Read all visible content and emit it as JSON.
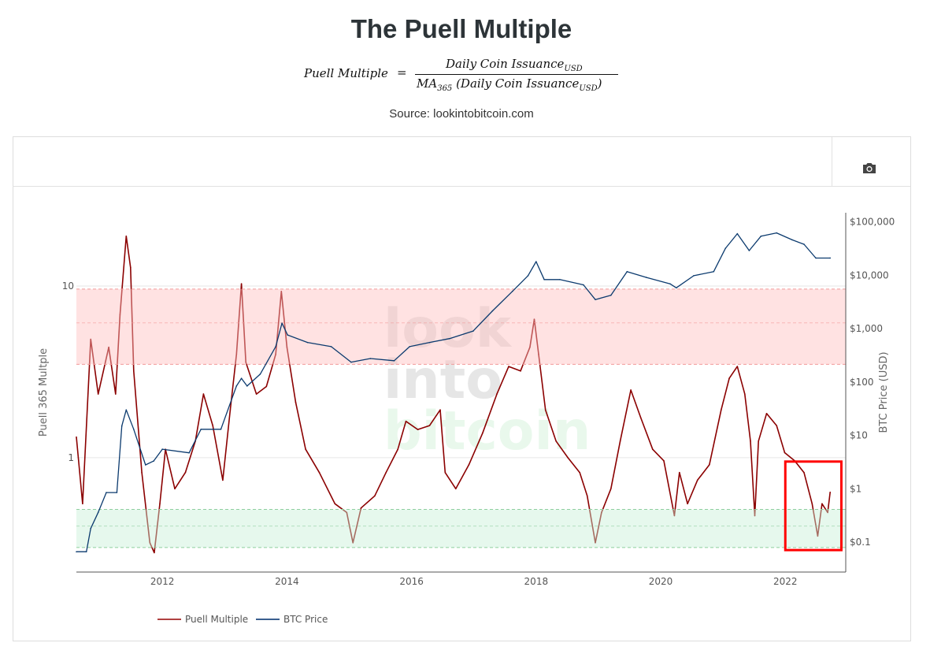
{
  "title": "The Puell Multiple",
  "formula": {
    "lhs": "Puell Multiple",
    "eq": "=",
    "numerator": "Daily Coin Issuance",
    "numerator_sub": "USD",
    "den_ma": "MA",
    "den_ma_sub": "365",
    "den_body": " (Daily Coin Issuance",
    "den_sub": "USD",
    "den_close": ")"
  },
  "source": "Source: lookintobitcoin.com",
  "toolbar": {
    "camera_icon": "camera-icon"
  },
  "watermark": [
    "look",
    "into",
    "bitcoin"
  ],
  "colors": {
    "puell": "#8b0000",
    "btc": "#0b3a6e",
    "red_band": "#ffdede",
    "green_band": "#e6f7ee",
    "highlight": "#ff0000"
  },
  "chart_data": {
    "type": "line",
    "title": "",
    "xlabel": "",
    "x_ticks": [
      "2012",
      "2014",
      "2016",
      "2018",
      "2020",
      "2022"
    ],
    "x_tick_values": [
      2012,
      2014,
      2016,
      2018,
      2020,
      2022
    ],
    "xlim": [
      2010.62,
      2022.97
    ],
    "y_left": {
      "label": "Puell 365 Multple",
      "scale": "log",
      "ticks": [
        "1",
        "10"
      ],
      "tick_values": [
        1,
        10
      ],
      "range": [
        0.216,
        26.7
      ]
    },
    "y_right": {
      "label": "BTC Price (USD)",
      "scale": "log",
      "ticks": [
        "$0.1",
        "$1",
        "$10",
        "$100",
        "$1,000",
        "$10,000",
        "$100,000"
      ],
      "tick_values": [
        0.1,
        1,
        10,
        100,
        1000,
        10000,
        100000
      ],
      "range": [
        0.0275,
        148000
      ]
    },
    "bands": [
      {
        "axis": "left",
        "range": [
          3.5,
          9.6
        ],
        "mid": 6.1,
        "color": "red"
      },
      {
        "axis": "left",
        "range": [
          0.3,
          0.5
        ],
        "mid": 0.4,
        "color": "green"
      }
    ],
    "highlight_box": {
      "x": [
        2022.0,
        2022.9
      ],
      "y_left": [
        0.29,
        0.95
      ]
    },
    "legend": {
      "placement": "bottom-left"
    },
    "series": [
      {
        "name": "Puell Multiple",
        "axis": "left",
        "x": [
          2010.62,
          2010.72,
          2010.85,
          2010.97,
          2011.14,
          2011.25,
          2011.32,
          2011.42,
          2011.49,
          2011.54,
          2011.67,
          2011.8,
          2011.87,
          2011.96,
          2012.05,
          2012.2,
          2012.37,
          2012.53,
          2012.66,
          2012.81,
          2012.97,
          2013.09,
          2013.19,
          2013.27,
          2013.34,
          2013.51,
          2013.67,
          2013.82,
          2013.91,
          2014.0,
          2014.14,
          2014.3,
          2014.52,
          2014.77,
          2014.96,
          2015.06,
          2015.19,
          2015.41,
          2015.59,
          2015.78,
          2015.91,
          2016.1,
          2016.29,
          2016.46,
          2016.54,
          2016.71,
          2016.92,
          2017.14,
          2017.37,
          2017.56,
          2017.75,
          2017.9,
          2017.97,
          2018.04,
          2018.15,
          2018.32,
          2018.51,
          2018.7,
          2018.82,
          2018.95,
          2019.05,
          2019.2,
          2019.35,
          2019.52,
          2019.68,
          2019.87,
          2020.05,
          2020.22,
          2020.3,
          2020.43,
          2020.59,
          2020.78,
          2020.97,
          2021.1,
          2021.23,
          2021.35,
          2021.44,
          2021.51,
          2021.57,
          2021.7,
          2021.86,
          2021.99,
          2022.15,
          2022.3,
          2022.43,
          2022.52,
          2022.59,
          2022.68,
          2022.72
        ],
        "values": [
          1.32,
          0.54,
          4.9,
          2.35,
          4.4,
          2.35,
          6.8,
          19.5,
          12.8,
          3.2,
          0.82,
          0.32,
          0.28,
          0.54,
          1.12,
          0.66,
          0.82,
          1.25,
          2.35,
          1.54,
          0.74,
          1.9,
          4.0,
          10.3,
          3.6,
          2.35,
          2.6,
          4.0,
          9.3,
          4.4,
          2.1,
          1.12,
          0.82,
          0.54,
          0.48,
          0.32,
          0.51,
          0.6,
          0.82,
          1.12,
          1.63,
          1.46,
          1.54,
          1.9,
          0.82,
          0.66,
          0.91,
          1.39,
          2.35,
          3.4,
          3.2,
          4.4,
          6.4,
          4.0,
          1.9,
          1.25,
          1.0,
          0.82,
          0.6,
          0.32,
          0.48,
          0.66,
          1.25,
          2.48,
          1.71,
          1.12,
          0.96,
          0.46,
          0.82,
          0.54,
          0.74,
          0.91,
          1.9,
          2.9,
          3.4,
          2.35,
          1.25,
          0.46,
          1.25,
          1.81,
          1.54,
          1.07,
          0.96,
          0.82,
          0.54,
          0.35,
          0.54,
          0.48,
          0.63
        ]
      },
      {
        "name": "BTC Price",
        "axis": "right",
        "x": [
          2010.62,
          2010.78,
          2010.85,
          2010.97,
          2011.1,
          2011.27,
          2011.35,
          2011.42,
          2011.54,
          2011.73,
          2011.86,
          2012.0,
          2012.43,
          2012.62,
          2012.94,
          2013.19,
          2013.27,
          2013.36,
          2013.57,
          2013.82,
          2013.92,
          2014.01,
          2014.33,
          2014.71,
          2015.03,
          2015.34,
          2015.72,
          2015.97,
          2016.29,
          2016.61,
          2016.99,
          2017.3,
          2017.62,
          2017.87,
          2018.0,
          2018.13,
          2018.38,
          2018.76,
          2018.95,
          2019.2,
          2019.46,
          2019.77,
          2020.15,
          2020.25,
          2020.53,
          2020.85,
          2021.04,
          2021.23,
          2021.42,
          2021.61,
          2021.86,
          2022.11,
          2022.3,
          2022.49,
          2022.72
        ],
        "values": [
          0.066,
          0.066,
          0.18,
          0.36,
          0.85,
          0.85,
          15,
          30,
          13,
          2.8,
          3.3,
          5.5,
          4.7,
          13,
          13,
          84,
          117,
          84,
          140,
          460,
          1260,
          760,
          550,
          460,
          235,
          275,
          250,
          460,
          550,
          650,
          900,
          2150,
          5000,
          9800,
          18000,
          8300,
          8300,
          6600,
          3500,
          4200,
          11700,
          9100,
          6900,
          5800,
          9800,
          11700,
          32000,
          60000,
          29000,
          54000,
          62000,
          46000,
          38000,
          21000,
          21000
        ]
      }
    ]
  }
}
